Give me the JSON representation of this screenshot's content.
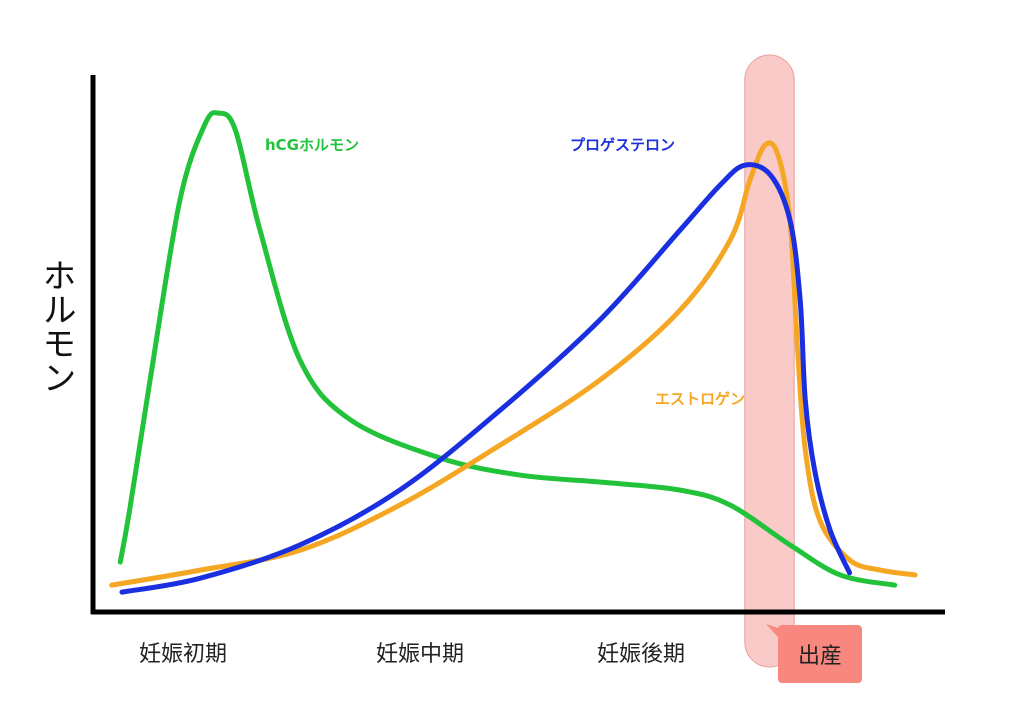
{
  "chart_data": {
    "type": "line",
    "title": "",
    "xlabel": "",
    "ylabel": "ホルモン",
    "xlim": [
      0,
      100
    ],
    "ylim": [
      0,
      100
    ],
    "grid": false,
    "categories": [
      "妊娠初期",
      "妊娠中期",
      "妊娠後期"
    ],
    "category_positions": [
      10.5,
      38.4,
      64.3
    ],
    "highlight": {
      "label": "出産",
      "x_range": [
        76.5,
        82.3
      ],
      "color": "#f7b8b5",
      "callout_color": "#f7877f"
    },
    "series": [
      {
        "name": "hCGホルモン",
        "color": "#22c33a",
        "points": [
          [
            3.2,
            9.3
          ],
          [
            4.3,
            19.0
          ],
          [
            6.7,
            43.2
          ],
          [
            10.2,
            76.7
          ],
          [
            13.1,
            90.7
          ],
          [
            14.7,
            92.9
          ],
          [
            16.7,
            89.8
          ],
          [
            19.6,
            71.1
          ],
          [
            24.3,
            46.9
          ],
          [
            30.2,
            35.8
          ],
          [
            40.7,
            28.7
          ],
          [
            50.1,
            25.5
          ],
          [
            59.5,
            24.2
          ],
          [
            68.9,
            22.7
          ],
          [
            74.8,
            19.9
          ],
          [
            81.8,
            12.5
          ],
          [
            87.7,
            6.9
          ],
          [
            94.1,
            5.0
          ]
        ]
      },
      {
        "name": "エストロゲン",
        "color": "#f5a623",
        "points": [
          [
            2.2,
            5.0
          ],
          [
            12.6,
            7.8
          ],
          [
            24.3,
            11.5
          ],
          [
            36.0,
            19.9
          ],
          [
            47.8,
            31.1
          ],
          [
            59.5,
            43.2
          ],
          [
            68.9,
            56.2
          ],
          [
            74.8,
            69.3
          ],
          [
            77.1,
            80.4
          ],
          [
            78.9,
            87.0
          ],
          [
            80.4,
            85.1
          ],
          [
            81.8,
            73.0
          ],
          [
            82.7,
            48.8
          ],
          [
            83.6,
            30.2
          ],
          [
            85.3,
            17.1
          ],
          [
            88.8,
            9.7
          ],
          [
            92.4,
            7.8
          ],
          [
            96.5,
            6.9
          ]
        ]
      },
      {
        "name": "プロゲステロン",
        "color": "#1a2fe0",
        "points": [
          [
            3.4,
            3.7
          ],
          [
            12.6,
            6.3
          ],
          [
            24.3,
            12.5
          ],
          [
            36.0,
            22.7
          ],
          [
            47.8,
            37.6
          ],
          [
            59.5,
            54.4
          ],
          [
            68.9,
            71.1
          ],
          [
            73.6,
            79.5
          ],
          [
            76.5,
            83.2
          ],
          [
            79.5,
            81.4
          ],
          [
            81.8,
            73.0
          ],
          [
            83.0,
            58.1
          ],
          [
            83.6,
            39.5
          ],
          [
            84.7,
            26.4
          ],
          [
            86.5,
            15.3
          ],
          [
            88.8,
            7.3
          ]
        ]
      }
    ]
  }
}
